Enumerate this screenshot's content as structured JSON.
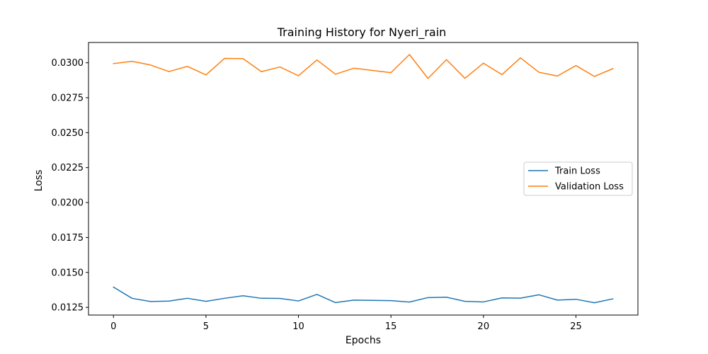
{
  "chart_data": {
    "type": "line",
    "title": "Training History for Nyeri_rain",
    "xlabel": "Epochs",
    "ylabel": "Loss",
    "xlim": [
      -1.35,
      28.35
    ],
    "ylim": [
      0.01195,
      0.03145
    ],
    "grid": false,
    "legend_position": "center-right",
    "x": [
      0,
      1,
      2,
      3,
      4,
      5,
      6,
      7,
      8,
      9,
      10,
      11,
      12,
      13,
      14,
      15,
      16,
      17,
      18,
      19,
      20,
      21,
      22,
      23,
      24,
      25,
      26,
      27
    ],
    "xticks": [
      0,
      5,
      10,
      15,
      20,
      25
    ],
    "xtick_labels": [
      "0",
      "5",
      "10",
      "15",
      "20",
      "25"
    ],
    "yticks": [
      0.0125,
      0.015,
      0.0175,
      0.02,
      0.0225,
      0.025,
      0.0275,
      0.03
    ],
    "ytick_labels": [
      "0.0125",
      "0.0150",
      "0.0175",
      "0.0200",
      "0.0225",
      "0.0250",
      "0.0275",
      "0.0300"
    ],
    "series": [
      {
        "name": "Train Loss",
        "color": "#1f77b4",
        "values": [
          0.01395,
          0.01315,
          0.01292,
          0.01295,
          0.01315,
          0.01293,
          0.01315,
          0.01333,
          0.01315,
          0.01314,
          0.01296,
          0.01343,
          0.01284,
          0.01302,
          0.013,
          0.01298,
          0.01288,
          0.0132,
          0.01323,
          0.01293,
          0.01289,
          0.01318,
          0.01316,
          0.0134,
          0.01302,
          0.01308,
          0.01283,
          0.01311
        ]
      },
      {
        "name": "Validation Loss",
        "color": "#ff7f0e",
        "values": [
          0.02994,
          0.0301,
          0.02984,
          0.02937,
          0.02974,
          0.02913,
          0.03031,
          0.0303,
          0.02936,
          0.0297,
          0.02907,
          0.0302,
          0.02918,
          0.02961,
          0.02945,
          0.02929,
          0.03059,
          0.02888,
          0.03022,
          0.02889,
          0.02997,
          0.02915,
          0.03035,
          0.02932,
          0.02905,
          0.0298,
          0.02902,
          0.02958
        ]
      }
    ]
  }
}
